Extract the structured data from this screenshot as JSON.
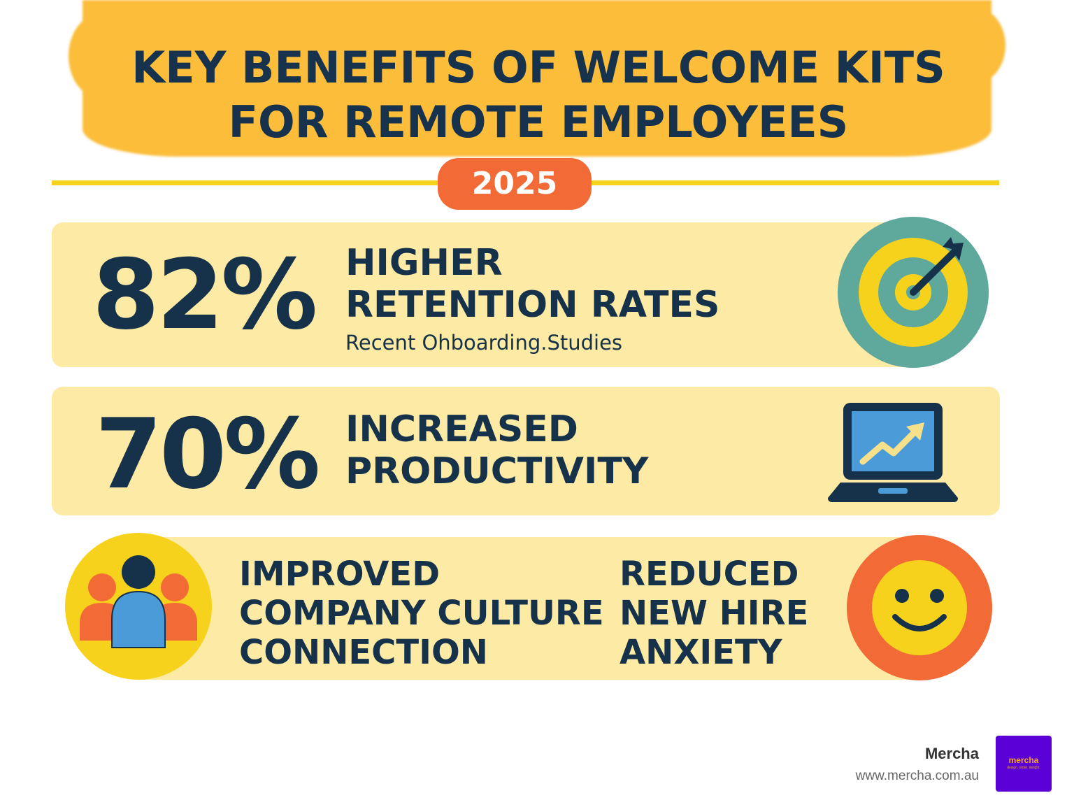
{
  "header": {
    "title_line1": "KEY BENEFITS OF WELCOME KITS",
    "title_line2": "FOR REMOTE EMPLOYEES",
    "year": "2025"
  },
  "benefits": [
    {
      "stat": "82%",
      "label_line1": "HIGHER",
      "label_line2": "RETENTION RATES",
      "source": "Recent Ohboarding.Studies",
      "icon": "target-icon"
    },
    {
      "stat": "70%",
      "label_line1": "INCREASED",
      "label_line2": "PRODUCTIVITY",
      "icon": "laptop-chart-icon"
    }
  ],
  "qualitative": [
    {
      "line1": "IMPROVED",
      "line2": "COMPANY CULTURE",
      "line3": "CONNECTION",
      "icon": "people-icon"
    },
    {
      "line1": "REDUCED",
      "line2": "NEW HIRE",
      "line3": "ANXIETY",
      "icon": "smiley-icon"
    }
  ],
  "footer": {
    "brand": "Mercha",
    "url": "www.mercha.com.au",
    "logo_word": "mercha",
    "logo_tagline": "design. order. delight."
  },
  "colors": {
    "header": "#fbbd3a",
    "card": "#fdeaa4",
    "text": "#15324a",
    "accent_orange": "#f26a36",
    "accent_yellow": "#f7d21c",
    "teal": "#5ea89c",
    "blue": "#4a9bd8",
    "logo_bg": "#5a00d6"
  }
}
